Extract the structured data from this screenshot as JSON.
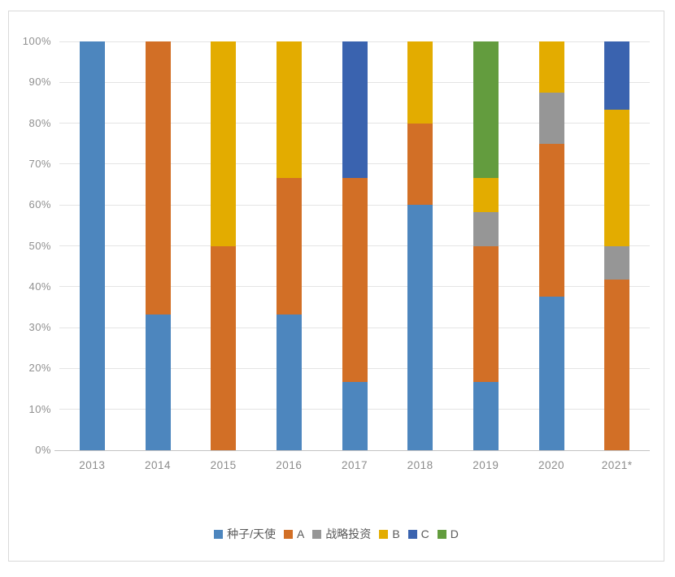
{
  "chart_data": {
    "type": "bar",
    "variant": "stacked-100-percent-column",
    "title": "",
    "xlabel": "",
    "ylabel": "",
    "categories": [
      "2013",
      "2014",
      "2015",
      "2016",
      "2017",
      "2018",
      "2019",
      "2020",
      "2021*"
    ],
    "series": [
      {
        "name": "种子/天使",
        "color": "#4d86be",
        "values": [
          100,
          33.3,
          0,
          33.3,
          16.7,
          60,
          16.7,
          37.5,
          0
        ]
      },
      {
        "name": "A",
        "color": "#d26f26",
        "values": [
          0,
          66.7,
          50,
          33.4,
          50,
          20,
          33.3,
          37.5,
          41.7
        ]
      },
      {
        "name": "战略投资",
        "color": "#969696",
        "values": [
          0,
          0,
          0,
          0,
          0,
          0,
          8.3,
          12.5,
          8.3
        ]
      },
      {
        "name": "B",
        "color": "#e3ac00",
        "values": [
          0,
          0,
          50,
          33.3,
          0,
          20,
          8.4,
          12.5,
          33.3
        ]
      },
      {
        "name": "C",
        "color": "#3a63af",
        "values": [
          0,
          0,
          0,
          0,
          33.3,
          0,
          0,
          0,
          16.7
        ]
      },
      {
        "name": "D",
        "color": "#639c3e",
        "values": [
          0,
          0,
          0,
          0,
          0,
          0,
          33.3,
          0,
          0
        ]
      }
    ],
    "y_ticks": [
      "0%",
      "10%",
      "20%",
      "30%",
      "40%",
      "50%",
      "60%",
      "70%",
      "80%",
      "90%",
      "100%"
    ],
    "ylim": [
      0,
      100
    ],
    "grid": true,
    "legend_position": "bottom",
    "colors": {
      "gridline": "#e4e4e4",
      "axis_line": "#c3c3c3",
      "tick_text": "#8c8c8c",
      "legend_text": "#595959",
      "card_border": "#d9d9d9",
      "background": "#ffffff"
    }
  }
}
